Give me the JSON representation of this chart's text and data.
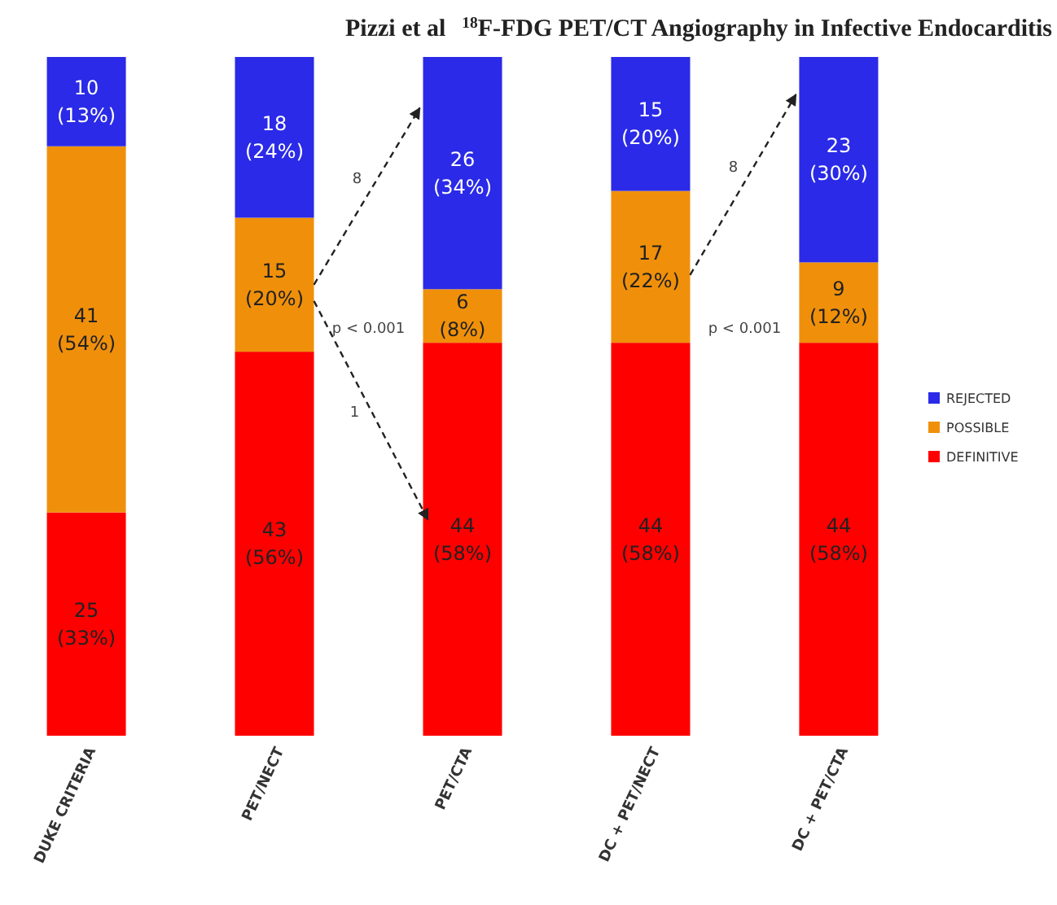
{
  "chart_data": {
    "type": "bar",
    "stacked": true,
    "title": "$^{18}$F-FDG PET/CT Angiography in Infective Endocarditis",
    "subtitle": "Pizzi et al",
    "categories": [
      "DUKE CRITERIA",
      "PET/NECT",
      "PET/CTA",
      "DC + PET/NECT",
      "DC + PET/CTA"
    ],
    "series": [
      {
        "name": "DEFINITIVE",
        "color": "#ff0000",
        "values": [
          25,
          43,
          44,
          44,
          44
        ],
        "value_labels": [
          "25\n(33%)",
          "43\n(56%)",
          "44\n(58%)",
          "44\n(58%)",
          "44\n(58%)"
        ]
      },
      {
        "name": "POSSIBLE",
        "color": "#f0900a",
        "values": [
          41,
          15,
          6,
          17,
          9
        ],
        "value_labels": [
          "41\n(54%)",
          "15\n(20%)",
          "6\n(8%)",
          "17\n(22%)",
          "9\n(12%)"
        ]
      },
      {
        "name": "REJECTED",
        "color": "#2a2ae8",
        "values": [
          10,
          18,
          26,
          15,
          23
        ],
        "value_labels": [
          "10\n(13%)",
          "18\n(24%)",
          "26\n(34%)",
          "15\n(20%)",
          "23\n(30%)"
        ]
      }
    ],
    "annotations": [
      "8",
      "p < 0.001",
      "1",
      "8",
      "p < 0.001"
    ],
    "legend": "right"
  }
}
